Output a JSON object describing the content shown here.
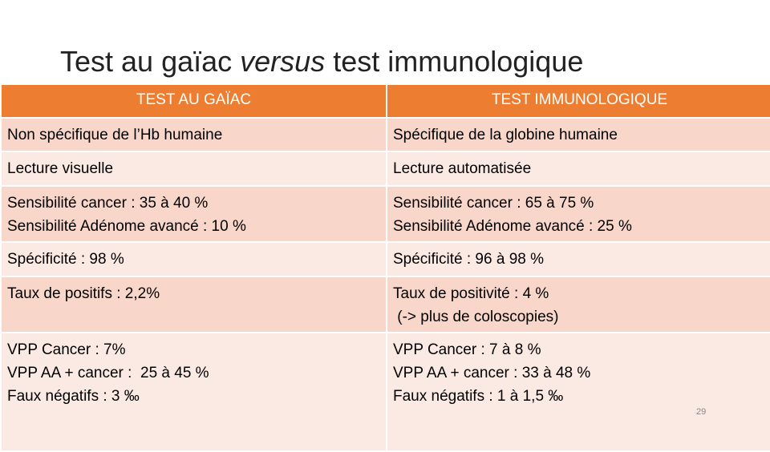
{
  "title": {
    "lead": "Test au gaïac",
    "emphasis": "versus",
    "tail": "test immunologique"
  },
  "table": {
    "header": [
      "TEST AU GAÏAC",
      "TEST IMMUNOLOGIQUE"
    ],
    "rows": [
      [
        [
          "Non spécifique de l’Hb humaine"
        ],
        [
          "Spécifique de la globine humaine"
        ]
      ],
      [
        [
          "Lecture visuelle"
        ],
        [
          "Lecture automatisée"
        ]
      ],
      [
        [
          "Sensibilité cancer : 35 à 40 %",
          "Sensibilité Adénome avancé : 10 %"
        ],
        [
          "Sensibilité cancer : 65 à 75 %",
          "Sensibilité Adénome avancé : 25 %"
        ]
      ],
      [
        [
          "Spécificité : 98 %"
        ],
        [
          "Spécificité : 96 à 98 %"
        ]
      ],
      [
        [
          "Taux de positifs : 2,2%"
        ],
        [
          "Taux de positivité : 4 %",
          " (-> plus de coloscopies)"
        ]
      ],
      [
        [
          "VPP Cancer : 7%",
          "VPP AA + cancer :  25 à 45 %",
          "Faux négatifs : 3 ‰"
        ],
        [
          "VPP Cancer : 7 à 8 %",
          "VPP AA + cancer : 33 à 48 %",
          "Faux négatifs : 1 à 1,5 ‰"
        ]
      ]
    ]
  },
  "page_number": "29"
}
